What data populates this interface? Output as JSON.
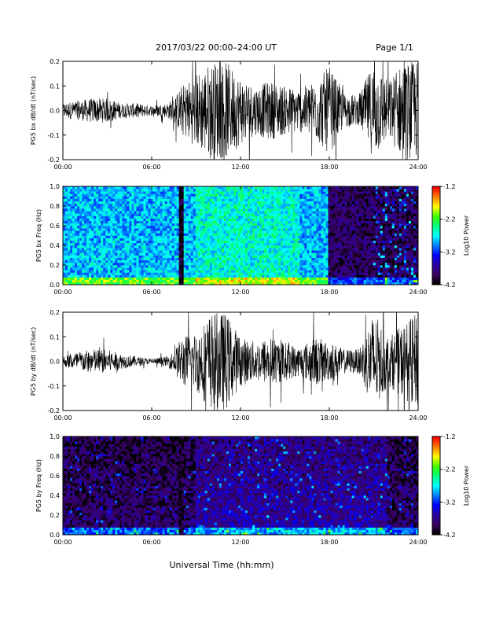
{
  "header": {
    "title": "2017/03/22   00:00–24:00 UT",
    "page": "Page 1/1"
  },
  "footer": {
    "xlabel": "Universal Time (hh:mm)"
  },
  "colors": {
    "trace": "#000000",
    "spectrogram_scale": [
      "#000000",
      "#3a0060",
      "#2a00a0",
      "#0000ff",
      "#0080ff",
      "#00ffff",
      "#00ff80",
      "#40ff00",
      "#ffff00",
      "#ff8000",
      "#ff0000"
    ]
  },
  "chart_data": [
    {
      "id": "bx_trace",
      "type": "line",
      "ylabel": "PG5 bx dB/dt (nT/sec)",
      "ylim": [
        -0.2,
        0.2
      ],
      "yticks": [
        "0.2",
        "0.1",
        "0.0",
        "-0.1",
        "-0.2"
      ],
      "ytick_values": [
        0.2,
        0.1,
        0.0,
        -0.1,
        -0.2
      ],
      "xlim": [
        0,
        24
      ],
      "xticks": [
        "00:00",
        "06:00",
        "12:00",
        "18:00",
        "24:00"
      ],
      "xtick_values": [
        0,
        6,
        12,
        18,
        24
      ],
      "envelope": {
        "hours": [
          0,
          1,
          2,
          3,
          4,
          5,
          6,
          7,
          7.5,
          8,
          9,
          10,
          11,
          12,
          13,
          14,
          15,
          16,
          17,
          18,
          19,
          20,
          21,
          22,
          23,
          24
        ],
        "amplitude": [
          0.03,
          0.04,
          0.05,
          0.05,
          0.03,
          0.03,
          0.02,
          0.03,
          0.05,
          0.1,
          0.15,
          0.2,
          0.2,
          0.14,
          0.1,
          0.12,
          0.1,
          0.09,
          0.12,
          0.18,
          0.07,
          0.06,
          0.2,
          0.12,
          0.2,
          0.2
        ]
      }
    },
    {
      "id": "bx_spectrogram",
      "type": "heatmap",
      "ylabel": "PG5 bx Freq (Hz)",
      "ylim": [
        0.0,
        1.0
      ],
      "yticks": [
        "1.0",
        "0.8",
        "0.6",
        "0.4",
        "0.2",
        "0.0"
      ],
      "ytick_values": [
        1.0,
        0.8,
        0.6,
        0.4,
        0.2,
        0.0
      ],
      "xlim": [
        0,
        24
      ],
      "xticks": [
        "00:00",
        "06:00",
        "12:00",
        "18:00",
        "24:00"
      ],
      "xtick_values": [
        0,
        6,
        12,
        18,
        24
      ],
      "colorbar": {
        "label": "Log10 Power",
        "ticks": [
          "-1.2",
          "-2.2",
          "-3.2",
          "-4.2"
        ],
        "tick_values": [
          -1.2,
          -2.2,
          -3.2,
          -4.2
        ],
        "range": [
          -4.2,
          -1.2
        ]
      }
    },
    {
      "id": "by_trace",
      "type": "line",
      "ylabel": "PG5 by dB/dt (nT/sec)",
      "ylim": [
        -0.2,
        0.2
      ],
      "yticks": [
        "0.2",
        "0.1",
        "0.0",
        "-0.1",
        "-0.2"
      ],
      "ytick_values": [
        0.2,
        0.1,
        0.0,
        -0.1,
        -0.2
      ],
      "xlim": [
        0,
        24
      ],
      "xticks": [
        "00:00",
        "06:00",
        "12:00",
        "18:00",
        "24:00"
      ],
      "xtick_values": [
        0,
        6,
        12,
        18,
        24
      ],
      "envelope": {
        "hours": [
          0,
          1,
          2,
          3,
          4,
          5,
          6,
          7,
          7.5,
          8,
          9,
          10,
          11,
          12,
          13,
          14,
          15,
          16,
          17,
          18,
          19,
          20,
          21,
          22,
          23,
          24
        ],
        "amplitude": [
          0.02,
          0.04,
          0.05,
          0.05,
          0.03,
          0.02,
          0.01,
          0.02,
          0.04,
          0.1,
          0.12,
          0.2,
          0.2,
          0.1,
          0.08,
          0.1,
          0.08,
          0.06,
          0.1,
          0.08,
          0.05,
          0.05,
          0.2,
          0.1,
          0.15,
          0.2
        ]
      }
    },
    {
      "id": "by_spectrogram",
      "type": "heatmap",
      "ylabel": "PG5 by Freq (Hz)",
      "ylim": [
        0.0,
        1.0
      ],
      "yticks": [
        "1.0",
        "0.8",
        "0.6",
        "0.4",
        "0.2",
        "0.0"
      ],
      "ytick_values": [
        1.0,
        0.8,
        0.6,
        0.4,
        0.2,
        0.0
      ],
      "xlim": [
        0,
        24
      ],
      "xticks": [
        "00:00",
        "06:00",
        "12:00",
        "18:00",
        "24:00"
      ],
      "xtick_values": [
        0,
        6,
        12,
        18,
        24
      ],
      "colorbar": {
        "label": "Log10 Power",
        "ticks": [
          "-1.2",
          "-2.2",
          "-3.2",
          "-4.2"
        ],
        "tick_values": [
          -1.2,
          -2.2,
          -3.2,
          -4.2
        ],
        "range": [
          -4.2,
          -1.2
        ]
      }
    }
  ]
}
